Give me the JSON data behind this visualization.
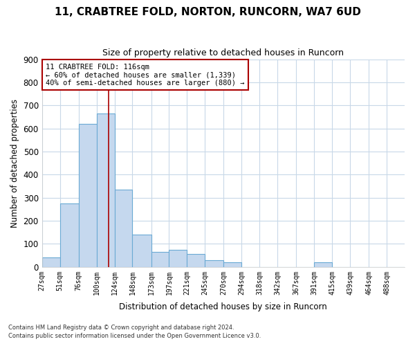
{
  "title": "11, CRABTREE FOLD, NORTON, RUNCORN, WA7 6UD",
  "subtitle": "Size of property relative to detached houses in Runcorn",
  "xlabel": "Distribution of detached houses by size in Runcorn",
  "ylabel": "Number of detached properties",
  "footer_line1": "Contains HM Land Registry data © Crown copyright and database right 2024.",
  "footer_line2": "Contains public sector information licensed under the Open Government Licence v3.0.",
  "annotation_line1": "11 CRABTREE FOLD: 116sqm",
  "annotation_line2": "← 60% of detached houses are smaller (1,339)",
  "annotation_line3": "40% of semi-detached houses are larger (880) →",
  "property_sqm": 116,
  "bar_color": "#c5d8ee",
  "bar_edge_color": "#6aaad4",
  "vline_color": "#aa0000",
  "annotation_box_edgecolor": "#aa0000",
  "background_color": "#ffffff",
  "grid_color": "#c8d8e8",
  "bins": [
    27,
    51,
    76,
    100,
    124,
    148,
    173,
    197,
    221,
    245,
    270,
    294,
    318,
    342,
    367,
    391,
    415,
    439,
    464,
    488,
    512
  ],
  "counts": [
    40,
    275,
    620,
    665,
    335,
    140,
    65,
    75,
    55,
    30,
    20,
    0,
    0,
    0,
    0,
    20,
    0,
    0,
    0,
    0
  ],
  "ylim": [
    0,
    900
  ],
  "yticks": [
    0,
    100,
    200,
    300,
    400,
    500,
    600,
    700,
    800,
    900
  ]
}
